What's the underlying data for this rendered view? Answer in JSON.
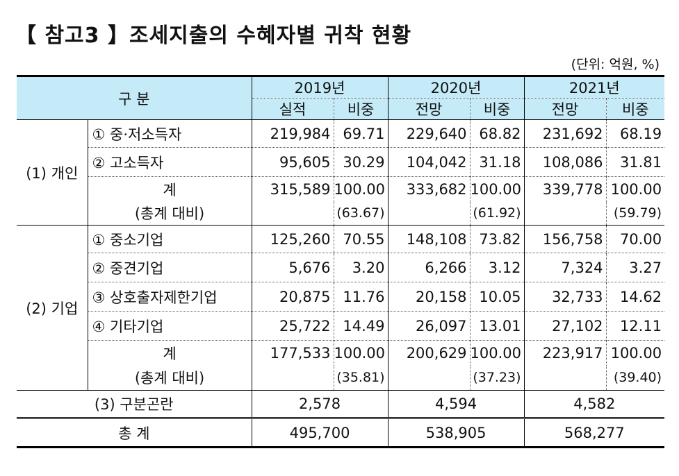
{
  "title": "【 참고3 】조세지출의 수혜자별 귀착 현황",
  "unit": "(단위: 억원, %)",
  "header": {
    "category": "구 분",
    "years": [
      "2019년",
      "2020년",
      "2021년"
    ],
    "sub": [
      "실적",
      "비중",
      "전망",
      "비중",
      "전망",
      "비중"
    ]
  },
  "groups": {
    "individual": "(1) 개인",
    "business": "(2) 기업"
  },
  "rows": {
    "ind1": {
      "label": "① 중·저소득자",
      "v": [
        "219,984",
        "69.71",
        "229,640",
        "68.82",
        "231,692",
        "68.19"
      ]
    },
    "ind2": {
      "label": "② 고소득자",
      "v": [
        "95,605",
        "30.29",
        "104,042",
        "31.18",
        "108,086",
        "31.81"
      ]
    },
    "indsum": {
      "label": "계",
      "sub": "(총계 대비)",
      "v": [
        "315,589",
        "100.00",
        "333,682",
        "100.00",
        "339,778",
        "100.00"
      ],
      "share": [
        "(63.67)",
        "(61.92)",
        "(59.79)"
      ]
    },
    "biz1": {
      "label": "① 중소기업",
      "v": [
        "125,260",
        "70.55",
        "148,108",
        "73.82",
        "156,758",
        "70.00"
      ]
    },
    "biz2": {
      "label": "② 중견기업",
      "v": [
        "5,676",
        "3.20",
        "6,266",
        "3.12",
        "7,324",
        "3.27"
      ]
    },
    "biz3": {
      "label": "③ 상호출자제한기업",
      "v": [
        "20,875",
        "11.76",
        "20,158",
        "10.05",
        "32,733",
        "14.62"
      ]
    },
    "biz4": {
      "label": "④ 기타기업",
      "v": [
        "25,722",
        "14.49",
        "26,097",
        "13.01",
        "27,102",
        "12.11"
      ]
    },
    "bizsum": {
      "label": "계",
      "sub": "(총계 대비)",
      "v": [
        "177,533",
        "100.00",
        "200,629",
        "100.00",
        "223,917",
        "100.00"
      ],
      "share": [
        "(35.81)",
        "(37.23)",
        "(39.40)"
      ]
    },
    "unclassified": {
      "label": "(3) 구분곤란",
      "v": [
        "2,578",
        "4,594",
        "4,582"
      ]
    },
    "total": {
      "label": "총 계",
      "v": [
        "495,700",
        "538,905",
        "568,277"
      ]
    }
  },
  "colors": {
    "header_bg": "#c5ebf8"
  }
}
